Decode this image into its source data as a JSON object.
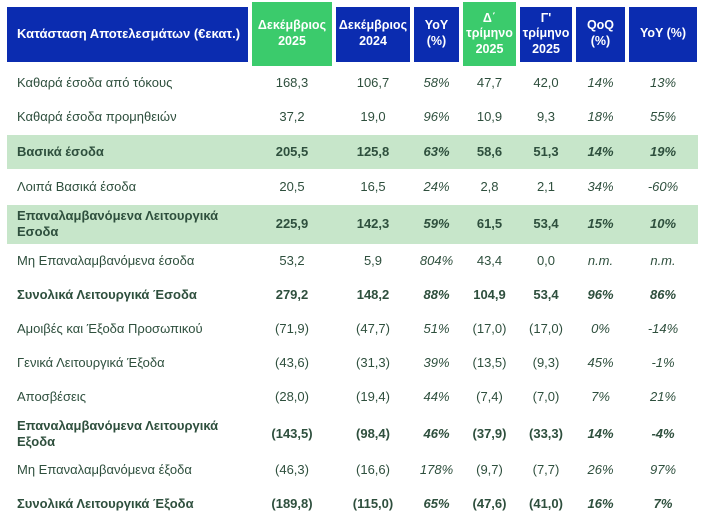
{
  "chart_data": {
    "type": "table",
    "title": "Κατάσταση Αποτελεσμάτων (€εκατ.)",
    "columns": [
      {
        "label": "Δεκέμβριος 2025",
        "highlight": true
      },
      {
        "label": "Δεκέμβριος 2024",
        "highlight": false
      },
      {
        "label": "YoY (%)",
        "highlight": false
      },
      {
        "label": "Δ΄ τρίμηνο 2025",
        "highlight": true
      },
      {
        "label": "Γ' τρίμηνο 2025",
        "highlight": false
      },
      {
        "label": "QoQ (%)",
        "highlight": false
      },
      {
        "label": "YoY (%)",
        "highlight": false
      }
    ],
    "percent_column_indexes": [
      2,
      5,
      6
    ],
    "rows": [
      {
        "label": "Καθαρά έσοδα από τόκους",
        "values": [
          "168,3",
          "106,7",
          "58%",
          "47,7",
          "42,0",
          "14%",
          "13%"
        ],
        "style": "normal"
      },
      {
        "label": "Καθαρά έσοδα προμηθειών",
        "values": [
          "37,2",
          "19,0",
          "96%",
          "10,9",
          "9,3",
          "18%",
          "55%"
        ],
        "style": "normal"
      },
      {
        "label": "Βασικά έσοδα",
        "values": [
          "205,5",
          "125,8",
          "63%",
          "58,6",
          "51,3",
          "14%",
          "19%"
        ],
        "style": "highlight"
      },
      {
        "label": "Λοιπά Βασικά έσοδα",
        "values": [
          "20,5",
          "16,5",
          "24%",
          "2,8",
          "2,1",
          "34%",
          "-60%"
        ],
        "style": "normal"
      },
      {
        "label": "Επαναλαμβανόμενα Λειτουργικά Εσοδα",
        "values": [
          "225,9",
          "142,3",
          "59%",
          "61,5",
          "53,4",
          "15%",
          "10%"
        ],
        "style": "highlight"
      },
      {
        "label": "Μη Επαναλαμβανόμενα έσοδα",
        "values": [
          "53,2",
          "5,9",
          "804%",
          "43,4",
          "0,0",
          "n.m.",
          "n.m."
        ],
        "style": "normal"
      },
      {
        "label": "Συνολικά Λειτουργικά Έσοδα",
        "values": [
          "279,2",
          "148,2",
          "88%",
          "104,9",
          "53,4",
          "96%",
          "86%"
        ],
        "style": "bold"
      },
      {
        "label": "Αμοιβές και Έξοδα Προσωπικού",
        "values": [
          "(71,9)",
          "(47,7)",
          "51%",
          "(17,0)",
          "(17,0)",
          "0%",
          "-14%"
        ],
        "style": "normal"
      },
      {
        "label": "Γενικά Λειτουργικά Έξοδα",
        "values": [
          "(43,6)",
          "(31,3)",
          "39%",
          "(13,5)",
          "(9,3)",
          "45%",
          "-1%"
        ],
        "style": "normal"
      },
      {
        "label": "Αποσβέσεις",
        "values": [
          "(28,0)",
          "(19,4)",
          "44%",
          "(7,4)",
          "(7,0)",
          "7%",
          "21%"
        ],
        "style": "normal"
      },
      {
        "label": "Επαναλαμβανόμενα Λειτουργικά Εξοδα",
        "values": [
          "(143,5)",
          "(98,4)",
          "46%",
          "(37,9)",
          "(33,3)",
          "14%",
          "-4%"
        ],
        "style": "bold"
      },
      {
        "label": "Μη Επαναλαμβανόμενα έξοδα",
        "values": [
          "(46,3)",
          "(16,6)",
          "178%",
          "(9,7)",
          "(7,7)",
          "26%",
          "97%"
        ],
        "style": "normal"
      },
      {
        "label": "Συνολικά Λειτουργικά Έξοδα",
        "values": [
          "(189,8)",
          "(115,0)",
          "65%",
          "(47,6)",
          "(41,0)",
          "16%",
          "7%"
        ],
        "style": "bold"
      }
    ]
  },
  "colors": {
    "header_blue": "#0b2cb0",
    "header_green": "#3bcb6c",
    "row_highlight_green": "#c7e6ca",
    "body_text_dark_green": "#2e4f3d",
    "header_text": "#ffffff",
    "background": "#ffffff"
  }
}
